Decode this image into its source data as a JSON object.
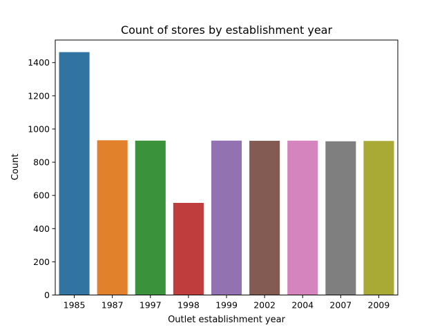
{
  "chart_data": {
    "type": "bar",
    "title": "Count of stores by establishment year",
    "xlabel": "Outlet establishment year",
    "ylabel": "Count",
    "categories": [
      "1985",
      "1987",
      "1997",
      "1998",
      "1999",
      "2002",
      "2004",
      "2007",
      "2009"
    ],
    "values": [
      1463,
      932,
      930,
      555,
      930,
      929,
      930,
      926,
      928
    ],
    "colors": [
      "#3274a1",
      "#e1812c",
      "#3a923a",
      "#c03d3e",
      "#9372b2",
      "#845b53",
      "#d684bd",
      "#7f7f7f",
      "#a9aa35"
    ],
    "ylim": [
      0,
      1536
    ],
    "yticks": [
      0,
      200,
      400,
      600,
      800,
      1000,
      1200,
      1400
    ],
    "grid": false,
    "legend": "none"
  }
}
